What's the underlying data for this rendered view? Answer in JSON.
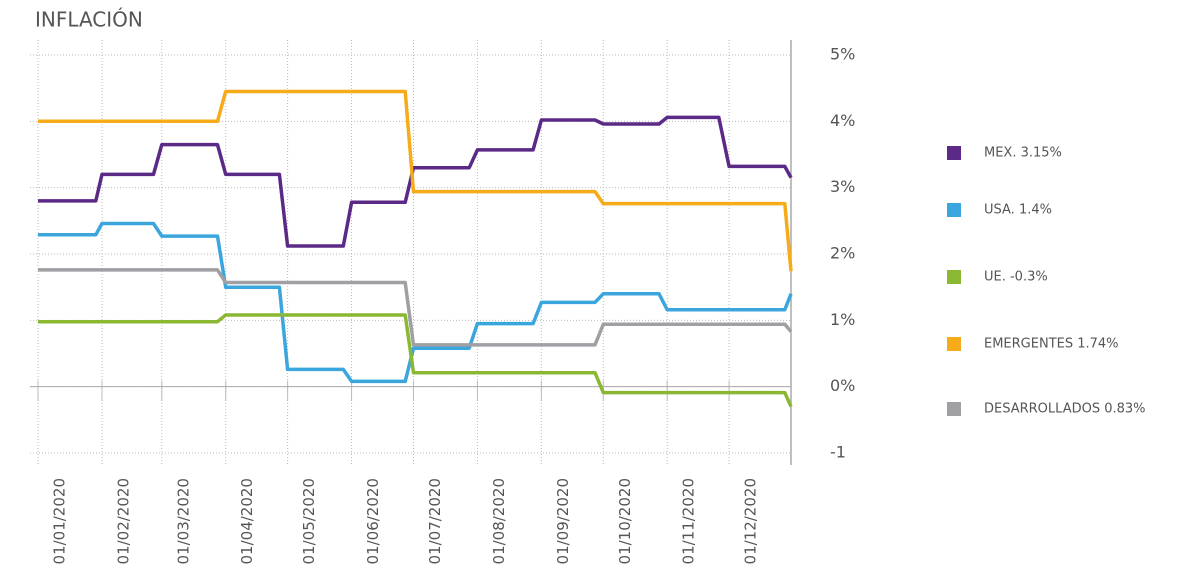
{
  "chart_data": {
    "type": "line",
    "title": "INFLACIÓN",
    "x": [
      "2020-01-01",
      "2020-01-29",
      "2020-02-01",
      "2020-02-26",
      "2020-03-01",
      "2020-03-28",
      "2020-04-01",
      "2020-04-27",
      "2020-05-01",
      "2020-05-28",
      "2020-06-01",
      "2020-06-27",
      "2020-07-01",
      "2020-07-28",
      "2020-08-01",
      "2020-08-28",
      "2020-09-01",
      "2020-09-27",
      "2020-10-01",
      "2020-10-28",
      "2020-11-01",
      "2020-11-26",
      "2020-12-01",
      "2020-12-28",
      "2020-12-31"
    ],
    "xlim": [
      "2020-01-01",
      "2020-12-31"
    ],
    "xticks": [
      {
        "value": "2020-01-01",
        "label": "01/01/2020"
      },
      {
        "value": "2020-02-01",
        "label": "01/02/2020"
      },
      {
        "value": "2020-03-01",
        "label": "01/03/2020"
      },
      {
        "value": "2020-04-01",
        "label": "01/04/2020"
      },
      {
        "value": "2020-05-01",
        "label": "01/05/2020"
      },
      {
        "value": "2020-06-01",
        "label": "01/06/2020"
      },
      {
        "value": "2020-07-01",
        "label": "01/07/2020"
      },
      {
        "value": "2020-08-01",
        "label": "01/08/2020"
      },
      {
        "value": "2020-09-01",
        "label": "01/09/2020"
      },
      {
        "value": "2020-10-01",
        "label": "01/10/2020"
      },
      {
        "value": "2020-11-01",
        "label": "01/11/2020"
      },
      {
        "value": "2020-12-01",
        "label": "01/12/2020"
      }
    ],
    "ylim": [
      -1,
      5
    ],
    "yticks": [
      {
        "value": 5,
        "label": "5%"
      },
      {
        "value": 4,
        "label": "4%"
      },
      {
        "value": 3,
        "label": "3%"
      },
      {
        "value": 2,
        "label": "2%"
      },
      {
        "value": 1,
        "label": "1%"
      },
      {
        "value": 0,
        "label": "0%"
      },
      -1
    ],
    "grid": true,
    "legend": "right",
    "series": [
      {
        "name": "MEX. 3.15%",
        "color": "#5b2a86",
        "values": [
          2.8,
          2.8,
          3.2,
          3.2,
          3.65,
          3.65,
          3.2,
          3.2,
          2.12,
          2.12,
          2.78,
          2.78,
          3.3,
          3.3,
          3.57,
          3.57,
          4.02,
          4.02,
          3.96,
          3.96,
          4.06,
          4.06,
          3.32,
          3.32,
          3.15
        ]
      },
      {
        "name": "USA. 1.4%",
        "color": "#3aa6dd",
        "values": [
          2.29,
          2.29,
          2.46,
          2.46,
          2.27,
          2.27,
          1.5,
          1.5,
          0.26,
          0.26,
          0.08,
          0.08,
          0.58,
          0.58,
          0.95,
          0.95,
          1.27,
          1.27,
          1.4,
          1.4,
          1.16,
          1.16,
          1.16,
          1.16,
          1.4
        ]
      },
      {
        "name": "UE. -0.3%",
        "color": "#8ab833",
        "values": [
          0.98,
          0.98,
          0.98,
          0.98,
          0.98,
          0.98,
          1.08,
          1.08,
          1.08,
          1.08,
          1.08,
          1.08,
          0.21,
          0.21,
          0.21,
          0.21,
          0.21,
          0.21,
          -0.09,
          -0.09,
          -0.09,
          -0.09,
          -0.09,
          -0.09,
          -0.3
        ]
      },
      {
        "name": "EMERGENTES 1.74%",
        "color": "#f5ab1a",
        "values": [
          4.0,
          4.0,
          4.0,
          4.0,
          4.0,
          4.0,
          4.45,
          4.45,
          4.45,
          4.45,
          4.45,
          4.45,
          2.94,
          2.94,
          2.94,
          2.94,
          2.94,
          2.94,
          2.76,
          2.76,
          2.76,
          2.76,
          2.76,
          2.76,
          1.74
        ]
      },
      {
        "name": "DESARROLLADOS 0.83%",
        "color": "#a0a0a4",
        "values": [
          1.76,
          1.76,
          1.76,
          1.76,
          1.76,
          1.76,
          1.57,
          1.57,
          1.57,
          1.57,
          1.57,
          1.57,
          0.63,
          0.63,
          0.63,
          0.63,
          0.63,
          0.63,
          0.94,
          0.94,
          0.94,
          0.94,
          0.94,
          0.94,
          0.83
        ]
      }
    ]
  }
}
